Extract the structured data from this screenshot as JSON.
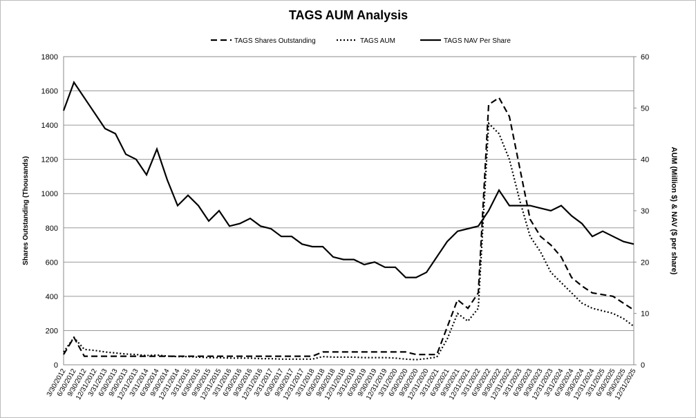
{
  "chart_data": {
    "type": "line",
    "title": "TAGS AUM Analysis",
    "y_label": "Shares Outstanding (Thousands)",
    "y2_label": "AUM (Million $) & NAV ($ per share)",
    "categories": [
      "3/30/2012",
      "6/30/2012",
      "9/30/2012",
      "12/31/2012",
      "3/31/2013",
      "6/30/2013",
      "9/30/2013",
      "12/31/2013",
      "3/31/2014",
      "6/30/2014",
      "9/30/2014",
      "12/31/2014",
      "3/31/2015",
      "6/30/2015",
      "9/30/2015",
      "12/31/2015",
      "3/31/2016",
      "6/30/2016",
      "9/30/2016",
      "12/31/2016",
      "3/31/2017",
      "6/30/2017",
      "9/30/2017",
      "12/31/2017",
      "3/31/2018",
      "6/30/2018",
      "9/30/2018",
      "12/31/2018",
      "3/31/2019",
      "6/30/2019",
      "9/30/2019",
      "12/31/2019",
      "3/31/2020",
      "6/30/2020",
      "9/30/2020",
      "12/31/2020",
      "3/31/2021",
      "6/30/2021",
      "9/30/2021",
      "12/31/2021",
      "3/31/2022",
      "6/30/2022",
      "9/30/2022",
      "12/31/2022",
      "3/31/2023",
      "6/30/2023",
      "9/30/2023",
      "12/31/2023",
      "3/31/2024",
      "6/30/2024",
      "9/30/2024",
      "12/31/2024",
      "3/31/2025",
      "6/30/2025",
      "9/30/2025",
      "12/31/2025"
    ],
    "series": [
      {
        "name": "TAGS Shares Outstanding",
        "color": "#000000",
        "dash": "dashed",
        "axis": "y",
        "values": [
          60,
          160,
          50,
          50,
          50,
          50,
          50,
          50,
          50,
          50,
          50,
          50,
          50,
          50,
          50,
          50,
          50,
          50,
          50,
          50,
          50,
          50,
          50,
          50,
          50,
          75,
          75,
          75,
          75,
          75,
          75,
          75,
          75,
          75,
          60,
          60,
          60,
          220,
          380,
          330,
          420,
          1520,
          1560,
          1450,
          1150,
          850,
          750,
          700,
          630,
          510,
          460,
          420,
          410,
          400,
          360,
          320
        ]
      },
      {
        "name": "TAGS AUM",
        "color": "#000000",
        "dash": "dotted",
        "axis": "y2",
        "values": [
          2.5,
          5.3,
          3,
          2.8,
          2.5,
          2.3,
          2.1,
          2,
          1.8,
          1.9,
          1.7,
          1.6,
          1.6,
          1.5,
          1.4,
          1.4,
          1.3,
          1.3,
          1.3,
          1.2,
          1.2,
          1.1,
          1.1,
          1.1,
          1.1,
          1.6,
          1.5,
          1.5,
          1.5,
          1.4,
          1.4,
          1.4,
          1.3,
          1.1,
          1,
          1.2,
          1.5,
          5,
          10,
          8.5,
          11,
          47,
          45,
          40,
          32,
          25,
          22,
          18,
          16,
          14,
          12,
          11,
          10.5,
          10,
          9,
          7.5
        ]
      },
      {
        "name": "TAGS NAV Per Share",
        "color": "#000000",
        "dash": "solid",
        "axis": "y2",
        "values": [
          49.5,
          55,
          52,
          49,
          46,
          45,
          41,
          40,
          37,
          42,
          36,
          31,
          33,
          31,
          28,
          30,
          27,
          27.5,
          28.5,
          27,
          26.5,
          25,
          25,
          23.5,
          23,
          23,
          21,
          20.5,
          20.5,
          19.5,
          20,
          19,
          19,
          17,
          17,
          18,
          21,
          24,
          26,
          26.5,
          27,
          30,
          34,
          31,
          31,
          31,
          30.5,
          30,
          31,
          29,
          27.5,
          25,
          26,
          25,
          24,
          23.5
        ]
      }
    ],
    "ylim": [
      0,
      1800
    ],
    "yticks": [
      0,
      200,
      400,
      600,
      800,
      1000,
      1200,
      1400,
      1600,
      1800
    ],
    "y2lim": [
      0,
      60
    ],
    "y2ticks": [
      0,
      10,
      20,
      30,
      40,
      50,
      60
    ],
    "grid": true,
    "legend": "top"
  }
}
